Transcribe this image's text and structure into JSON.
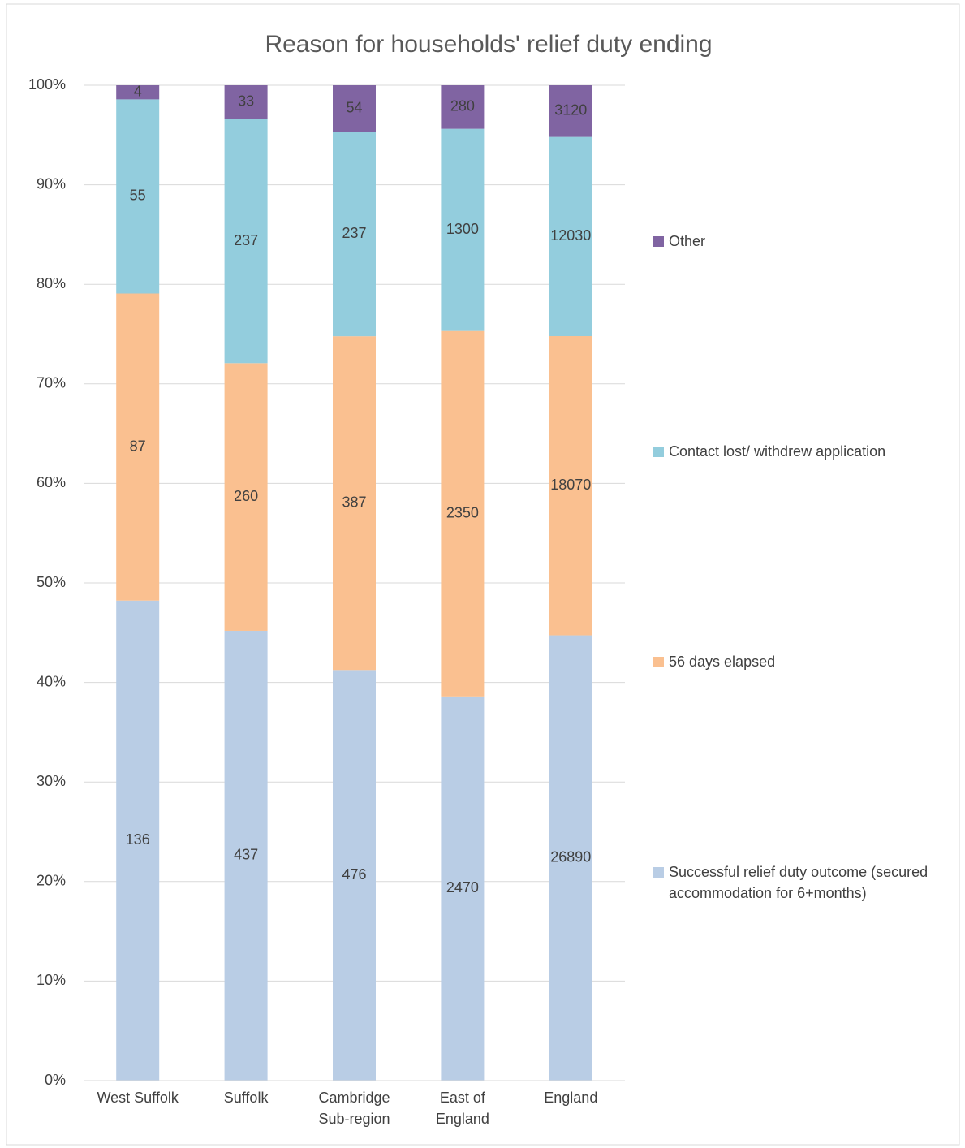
{
  "chart_data": {
    "type": "bar",
    "stacked": "percent",
    "title": "Reason for households' relief duty ending",
    "categories": [
      "West Suffolk",
      "Suffolk",
      "Cambridge Sub-region",
      "East of England",
      "England"
    ],
    "series": [
      {
        "name": "Successful relief duty outcome (secured accommodation for 6+months)",
        "color": "#b9cde5",
        "values": [
          136,
          437,
          476,
          2470,
          26890
        ]
      },
      {
        "name": "56 days elapsed",
        "color": "#fac090",
        "values": [
          87,
          260,
          387,
          2350,
          18070
        ]
      },
      {
        "name": "Contact lost/ withdrew application",
        "color": "#93cddd",
        "values": [
          55,
          237,
          237,
          1300,
          12030
        ]
      },
      {
        "name": "Other",
        "color": "#8064a2",
        "values": [
          4,
          33,
          54,
          280,
          3120
        ]
      }
    ],
    "ylim": [
      0,
      100
    ],
    "yticks": [
      {
        "value": 0,
        "label": "0%"
      },
      {
        "value": 10,
        "label": "10%"
      },
      {
        "value": 20,
        "label": "20%"
      },
      {
        "value": 30,
        "label": "30%"
      },
      {
        "value": 40,
        "label": "40%"
      },
      {
        "value": 50,
        "label": "50%"
      },
      {
        "value": 60,
        "label": "60%"
      },
      {
        "value": 70,
        "label": "70%"
      },
      {
        "value": 80,
        "label": "80%"
      },
      {
        "value": 90,
        "label": "90%"
      },
      {
        "value": 100,
        "label": "100%"
      }
    ],
    "grid": true,
    "legend": "right"
  }
}
